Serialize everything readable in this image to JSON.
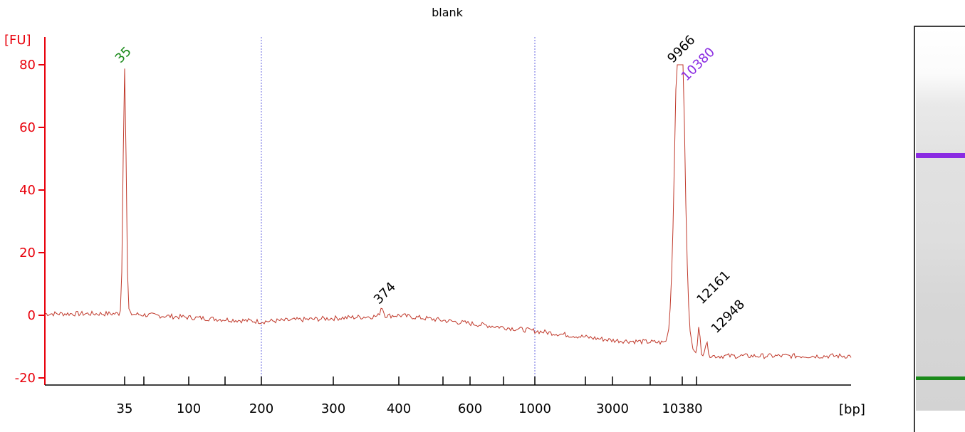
{
  "chart_data": {
    "type": "line",
    "title": "blank",
    "ylabel": "[FU]",
    "xlabel": "[bp]",
    "ylim": [
      -22,
      88
    ],
    "y_ticks": [
      -20,
      0,
      20,
      40,
      60,
      80
    ],
    "x_ticks": [
      "35",
      "100",
      "200",
      "300",
      "400",
      "600",
      "1000",
      "3000",
      "10380"
    ],
    "x_gridlines": [
      "200",
      "1000"
    ],
    "grid": false,
    "colors": {
      "trace": "#c0392b",
      "axis": "#e8000b",
      "grid": "#6a6ae0",
      "lower_marker": "#1a8a1a",
      "upper_marker": "#8a2be2",
      "peak_label": "#000000"
    },
    "peaks": [
      {
        "label": "35",
        "bp": 35,
        "fu": 79,
        "color": "#1a8a1a"
      },
      {
        "label": "374",
        "bp": 374,
        "fu": 2,
        "color": "#000000"
      },
      {
        "label": "9966",
        "bp": 9966,
        "fu": 79,
        "color": "#000000"
      },
      {
        "label": "10380",
        "bp": 10380,
        "fu": 76,
        "color": "#8a2be2"
      },
      {
        "label": "12161",
        "bp": 12161,
        "fu": 2,
        "color": "#000000"
      },
      {
        "label": "12948",
        "bp": 12948,
        "fu": -5,
        "color": "#000000"
      }
    ],
    "baseline": {
      "x_bp": [
        "35",
        "200",
        "400",
        "1000",
        "3000",
        "10380",
        "12948"
      ],
      "fu": [
        0.5,
        -2,
        0,
        -5,
        -8,
        -9,
        -13
      ]
    }
  },
  "gel": {
    "upper_marker_color": "#8a2be2",
    "lower_marker_color": "#1a8a1a"
  }
}
